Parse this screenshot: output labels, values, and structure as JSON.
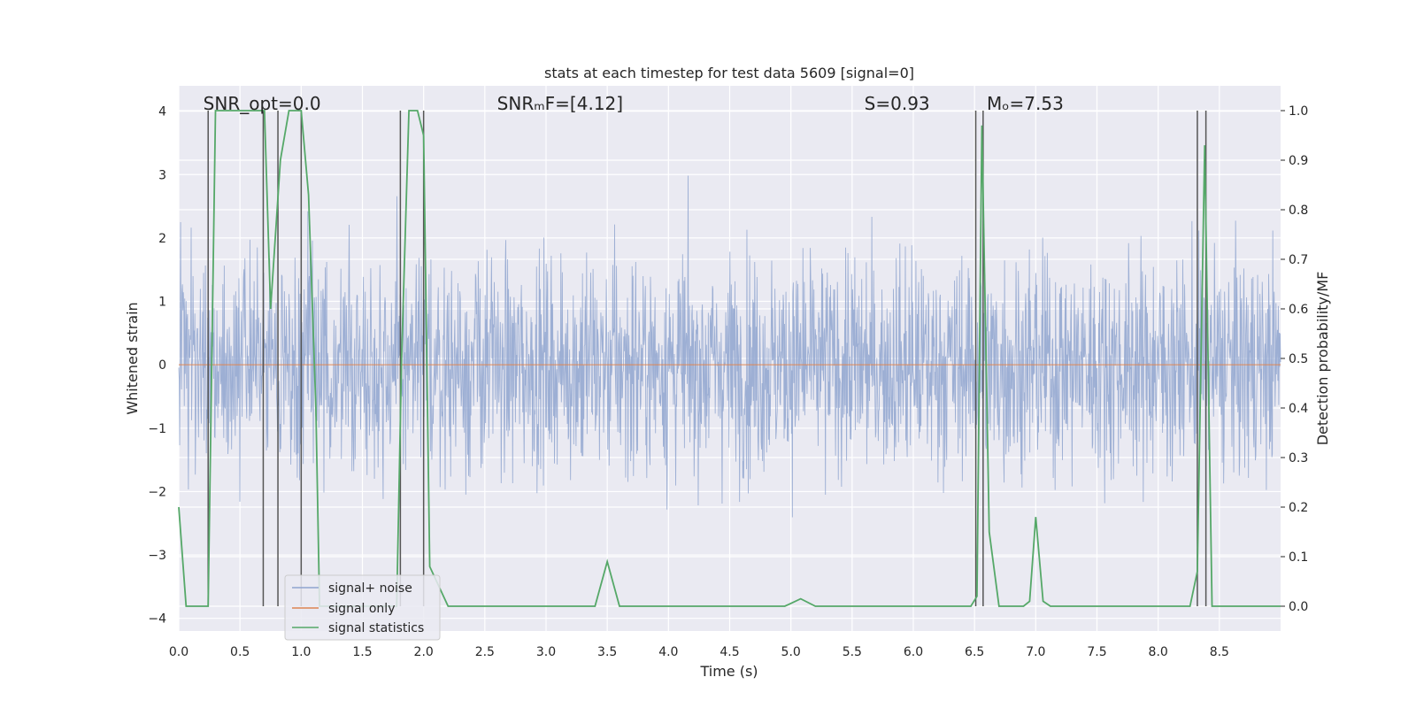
{
  "chart_data": {
    "type": "line",
    "title": "stats at each timestep for test data 5609 [signal=0]",
    "xlabel": "Time (s)",
    "ylabel": "Whitened strain",
    "ylabel_right": "Detection probability/MF",
    "xlim": [
      0.0,
      9.0
    ],
    "ylim": [
      -4.2,
      4.4
    ],
    "ylim_right": [
      -0.05,
      1.05
    ],
    "x_ticks": [
      "0.0",
      "0.5",
      "1.0",
      "1.5",
      "2.0",
      "2.5",
      "3.0",
      "3.5",
      "4.0",
      "4.5",
      "5.0",
      "5.5",
      "6.0",
      "6.5",
      "7.0",
      "7.5",
      "8.0",
      "8.5"
    ],
    "y_ticks": [
      "−4",
      "−3",
      "−2",
      "−1",
      "0",
      "1",
      "2",
      "3",
      "4"
    ],
    "y_ticks_right": [
      "0.0",
      "0.1",
      "0.2",
      "0.3",
      "0.4",
      "0.5",
      "0.6",
      "0.7",
      "0.8",
      "0.9",
      "1.0"
    ],
    "grid": true,
    "annotations": [
      {
        "text": "SNR_opt=0.0",
        "x": 0.2
      },
      {
        "text": "SNRₘF=[4.12]",
        "x": 2.6
      },
      {
        "text": "S=0.93",
        "x": 5.6
      },
      {
        "text": "Mₒ=7.53",
        "x": 6.6
      }
    ],
    "legend": {
      "placement": "lower-left",
      "entries": [
        "signal+ noise",
        "signal only",
        "signal statistics"
      ]
    },
    "colors": {
      "noise": "#8fa4cf",
      "signal": "#dd8452",
      "stats": "#55a868",
      "vlines": "#555555",
      "background": "#eaeaf2",
      "grid": "#ffffff"
    },
    "series": [
      {
        "name": "signal+ noise",
        "axis": "left",
        "kind": "noise",
        "amplitude_std": 0.85
      },
      {
        "name": "signal only",
        "axis": "left",
        "kind": "constant",
        "value": 0.0
      },
      {
        "name": "signal statistics",
        "axis": "right",
        "x": [
          0.0,
          0.06,
          0.13,
          0.2,
          0.24,
          0.3,
          0.35,
          0.7,
          0.75,
          0.83,
          0.9,
          0.95,
          1.0,
          1.06,
          1.12,
          1.15,
          1.2,
          1.3,
          1.78,
          1.82,
          1.88,
          1.95,
          2.0,
          2.05,
          2.2,
          2.5,
          3.0,
          3.4,
          3.5,
          3.6,
          4.0,
          4.5,
          4.95,
          5.08,
          5.2,
          5.6,
          6.0,
          6.47,
          6.52,
          6.56,
          6.62,
          6.7,
          6.9,
          6.95,
          7.0,
          7.06,
          7.12,
          7.5,
          8.0,
          8.26,
          8.32,
          8.38,
          8.44,
          8.6,
          9.0
        ],
        "y": [
          0.2,
          0.0,
          0.0,
          0.0,
          0.0,
          1.0,
          1.0,
          1.0,
          0.6,
          0.9,
          1.0,
          1.0,
          1.0,
          0.83,
          0.4,
          0.0,
          0.0,
          0.0,
          0.0,
          0.5,
          1.0,
          1.0,
          0.95,
          0.08,
          0.0,
          0.0,
          0.0,
          0.0,
          0.09,
          0.0,
          0.0,
          0.0,
          0.0,
          0.015,
          0.0,
          0.0,
          0.0,
          0.0,
          0.02,
          0.97,
          0.15,
          0.0,
          0.0,
          0.01,
          0.18,
          0.01,
          0.0,
          0.0,
          0.0,
          0.0,
          0.07,
          0.93,
          0.0,
          0.0,
          0.0
        ]
      },
      {
        "name": "",
        "kind": "vlines",
        "x": [
          0.24,
          0.69,
          0.81,
          1.0,
          1.81,
          2.0,
          6.51,
          6.57,
          8.32,
          8.39
        ]
      }
    ]
  }
}
